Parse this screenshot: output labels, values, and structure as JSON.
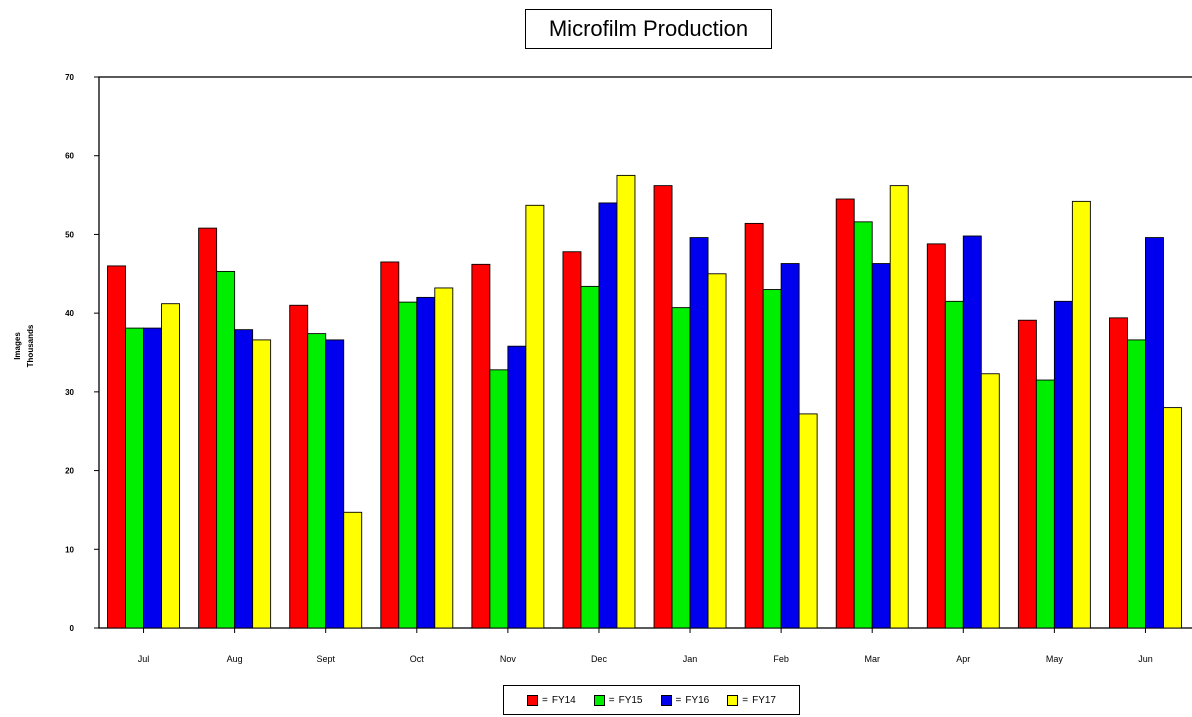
{
  "chart_data": {
    "type": "bar",
    "title": "Microfilm Production",
    "ylabel": [
      "Images",
      "Thousands"
    ],
    "xlabel": "",
    "ylim": [
      0,
      70
    ],
    "yticks": [
      0,
      10,
      20,
      30,
      40,
      50,
      60,
      70
    ],
    "categories": [
      "Jul",
      "Aug",
      "Sept",
      "Oct",
      "Nov",
      "Dec",
      "Jan",
      "Feb",
      "Mar",
      "Apr",
      "May",
      "Jun"
    ],
    "series": [
      {
        "name": "FY14",
        "color": "#ff0000",
        "values": [
          46,
          50.8,
          41,
          46.5,
          46.2,
          47.8,
          56.2,
          51.4,
          54.5,
          48.8,
          39.1,
          39.4
        ]
      },
      {
        "name": "FY15",
        "color": "#00ee00",
        "values": [
          38.1,
          45.3,
          37.4,
          41.4,
          32.8,
          43.4,
          40.7,
          43,
          51.6,
          41.5,
          31.5,
          36.6
        ]
      },
      {
        "name": "FY16",
        "color": "#0000ee",
        "values": [
          38.1,
          37.9,
          36.6,
          42,
          35.8,
          54,
          49.6,
          46.3,
          46.3,
          49.8,
          41.5,
          49.6
        ]
      },
      {
        "name": "FY17",
        "color": "#ffff00",
        "values": [
          41.2,
          36.6,
          14.7,
          43.2,
          53.7,
          57.5,
          45,
          27.2,
          56.2,
          32.3,
          54.2,
          28
        ]
      }
    ],
    "legend": {
      "placement": "bottom",
      "separator": "="
    },
    "grid": false
  }
}
